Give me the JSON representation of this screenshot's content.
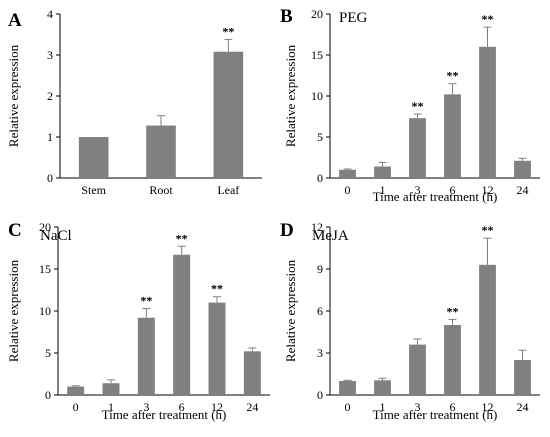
{
  "chart_data": [
    {
      "panel": "A",
      "type": "bar",
      "title": "",
      "xlabel": "",
      "ylabel": "Relative expression",
      "ylim": [
        0,
        4
      ],
      "yticks": [
        "0",
        "1",
        "2",
        "3",
        "4"
      ],
      "categories": [
        "Stem",
        "Root",
        "Leaf"
      ],
      "values": [
        1.0,
        1.28,
        3.08
      ],
      "errors": [
        0.0,
        0.24,
        0.3
      ],
      "significance": [
        "",
        "",
        "**"
      ],
      "color": "#808080",
      "grid": false
    },
    {
      "panel": "B",
      "type": "bar",
      "title": "PEG",
      "xlabel": "Time after treatment (h)",
      "ylabel": "Relative expression",
      "ylim": [
        0,
        20
      ],
      "yticks": [
        "0",
        "5",
        "10",
        "15",
        "20"
      ],
      "categories": [
        "0",
        "1",
        "3",
        "6",
        "12",
        "24"
      ],
      "values": [
        1.0,
        1.4,
        7.3,
        10.2,
        16.0,
        2.1
      ],
      "errors": [
        0.1,
        0.5,
        0.5,
        1.3,
        2.4,
        0.3
      ],
      "significance": [
        "",
        "",
        "**",
        "**",
        "**",
        ""
      ],
      "color": "#808080",
      "grid": false
    },
    {
      "panel": "C",
      "type": "bar",
      "title": "NaCl",
      "xlabel": "Time after treatment (h)",
      "ylabel": "Relative expression",
      "ylim": [
        0,
        20
      ],
      "yticks": [
        "0",
        "5",
        "10",
        "15",
        "20"
      ],
      "categories": [
        "0",
        "1",
        "3",
        "6",
        "12",
        "24"
      ],
      "values": [
        1.0,
        1.4,
        9.2,
        16.7,
        11.0,
        5.2
      ],
      "errors": [
        0.1,
        0.4,
        1.1,
        1.0,
        0.7,
        0.4
      ],
      "significance": [
        "",
        "",
        "**",
        "**",
        "**",
        ""
      ],
      "color": "#808080",
      "grid": false
    },
    {
      "panel": "D",
      "type": "bar",
      "title": "MeJA",
      "xlabel": "Time after treatment (h)",
      "ylabel": "Relative expression",
      "ylim": [
        0,
        12
      ],
      "yticks": [
        "0",
        "3",
        "6",
        "9",
        "12"
      ],
      "categories": [
        "0",
        "1",
        "3",
        "6",
        "12",
        "24"
      ],
      "values": [
        1.0,
        1.05,
        3.6,
        5.0,
        9.3,
        2.5
      ],
      "errors": [
        0.05,
        0.15,
        0.4,
        0.4,
        1.9,
        0.7
      ],
      "significance": [
        "",
        "",
        "",
        "**",
        "**",
        ""
      ],
      "color": "#808080",
      "grid": false
    }
  ]
}
